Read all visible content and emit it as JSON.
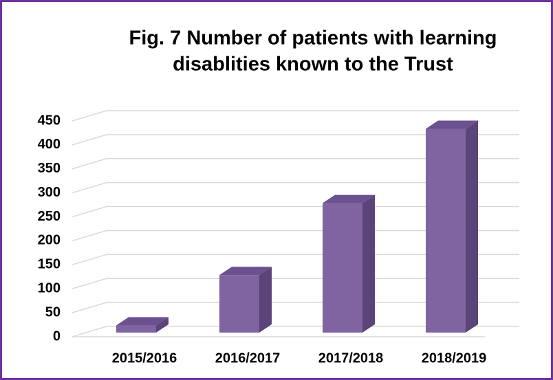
{
  "chart_data": {
    "type": "bar3d",
    "title_lines": [
      "Fig. 7 Number of patients with learning",
      "disablities known to the Trust"
    ],
    "categories": [
      "2015/2016",
      "2016/2017",
      "2017/2018",
      "2018/2019"
    ],
    "values": [
      15,
      120,
      270,
      425
    ],
    "color": "#8064a2",
    "ylim": [
      0,
      450
    ],
    "yticks": [
      0,
      50,
      100,
      150,
      200,
      250,
      300,
      350,
      400,
      450
    ],
    "grid": true
  }
}
